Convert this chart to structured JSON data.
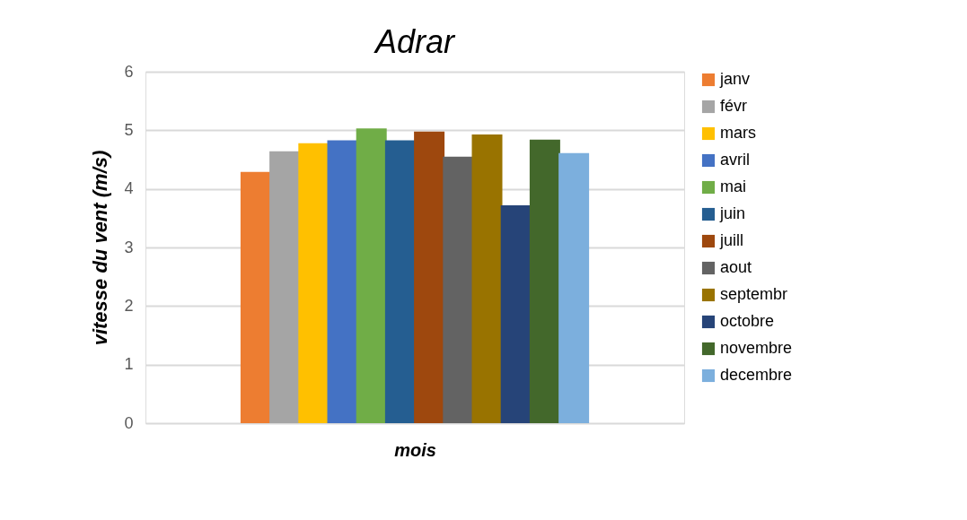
{
  "chart_data": {
    "type": "bar",
    "title": "Adrar",
    "xlabel": "mois",
    "ylabel": "vitesse du vent (m/s)",
    "categories": [
      null
    ],
    "series": [
      {
        "name": "janv",
        "color": "#ed7d31",
        "values": [
          4.29
        ]
      },
      {
        "name": "févr",
        "color": "#a5a5a5",
        "values": [
          4.64
        ]
      },
      {
        "name": "mars",
        "color": "#ffc000",
        "values": [
          4.78
        ]
      },
      {
        "name": "avril",
        "color": "#4472c4",
        "values": [
          4.83
        ]
      },
      {
        "name": "mai",
        "color": "#70ad47",
        "values": [
          5.03
        ]
      },
      {
        "name": "juin",
        "color": "#255e91",
        "values": [
          4.83
        ]
      },
      {
        "name": "juill",
        "color": "#9e480e",
        "values": [
          4.98
        ]
      },
      {
        "name": "aout",
        "color": "#636363",
        "values": [
          4.55
        ]
      },
      {
        "name": "septembr",
        "color": "#997300",
        "values": [
          4.93
        ]
      },
      {
        "name": "octobre",
        "color": "#264478",
        "values": [
          3.72
        ]
      },
      {
        "name": "novembre",
        "color": "#43682b",
        "values": [
          4.84
        ]
      },
      {
        "name": "decembre",
        "color": "#7cafdd",
        "values": [
          4.61
        ]
      }
    ],
    "ylim": [
      0,
      6
    ],
    "yticks": [
      0,
      1,
      2,
      3,
      4,
      5,
      6
    ],
    "grid": "y",
    "legend": "right",
    "tick_labels": "y"
  }
}
